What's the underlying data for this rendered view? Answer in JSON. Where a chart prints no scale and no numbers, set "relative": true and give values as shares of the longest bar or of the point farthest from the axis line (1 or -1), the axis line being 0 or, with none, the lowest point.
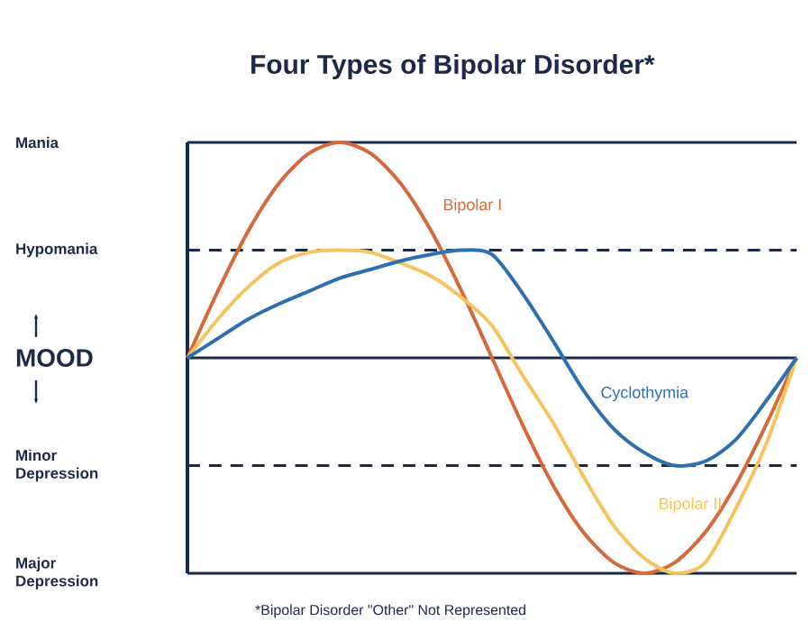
{
  "chart_data": {
    "type": "line",
    "title": "Four Types of Bipolar Disorder*",
    "categories": [
      null,
      null,
      null,
      null,
      null,
      null,
      null,
      null,
      null,
      null,
      null,
      null,
      null,
      null,
      null,
      null,
      null,
      null,
      null,
      null,
      null
    ],
    "relative": true,
    "series": [
      {
        "name": "Bipolar I",
        "color": "#d4693a",
        "values": [
          0,
          0.31,
          0.59,
          0.81,
          0.95,
          1,
          0.95,
          0.81,
          0.59,
          0.31,
          0,
          -0.31,
          -0.59,
          -0.81,
          -0.95,
          -1,
          -0.95,
          -0.81,
          -0.59,
          -0.31,
          0
        ]
      },
      {
        "name": "Bipolar II",
        "color": "#f5c45e",
        "values": [
          0,
          0.18,
          0.33,
          0.44,
          0.49,
          0.5,
          0.49,
          0.44,
          0.38,
          0.28,
          0.15,
          -0.08,
          -0.3,
          -0.55,
          -0.78,
          -0.93,
          -1,
          -0.95,
          -0.7,
          -0.4,
          0
        ]
      },
      {
        "name": "Cyclothymia",
        "color": "#2e6fb0",
        "values": [
          0,
          0.09,
          0.18,
          0.25,
          0.31,
          0.37,
          0.41,
          0.45,
          0.48,
          0.5,
          0.48,
          0.3,
          0.08,
          -0.15,
          -0.33,
          -0.44,
          -0.5,
          -0.48,
          -0.38,
          -0.2,
          0
        ]
      }
    ],
    "ref_lines": [
      {
        "axis": "y",
        "value": 1,
        "label": "Mania",
        "color": "#1c2a4a",
        "line_style": "solid"
      },
      {
        "axis": "y",
        "value": 0.5,
        "label": "Hypomania",
        "color": "#1c2a4a",
        "line_style": "dashed"
      },
      {
        "axis": "y",
        "value": 0,
        "label": "MOOD",
        "color": "#1c2a4a",
        "line_style": "solid"
      },
      {
        "axis": "y",
        "value": -0.5,
        "label": "Minor Depression",
        "color": "#1c2a4a",
        "line_style": "dashed"
      },
      {
        "axis": "y",
        "value": -1,
        "label": "Major Depression",
        "color": "#1c2a4a",
        "line_style": "solid"
      }
    ],
    "annotations": [
      "*Bipolar Disorder \"Other\" Not Represented"
    ]
  }
}
